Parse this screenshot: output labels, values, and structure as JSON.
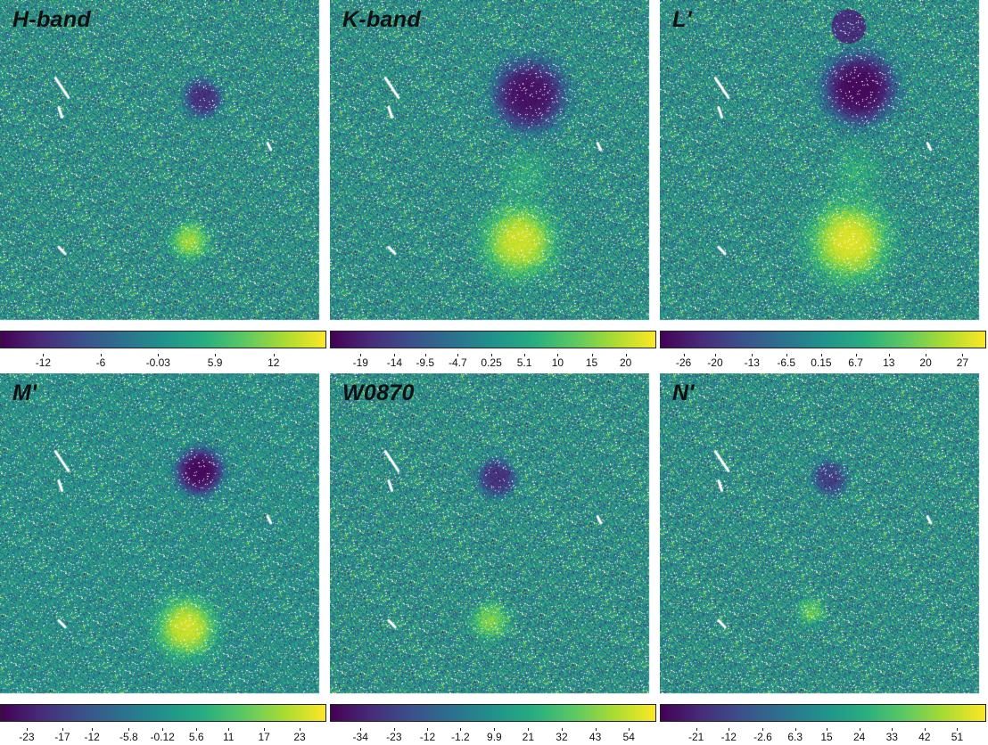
{
  "colormap": "viridis",
  "colormap_stops": [
    "#440154",
    "#472c7a",
    "#3b518b",
    "#2c718e",
    "#21918c",
    "#27ad81",
    "#5cc863",
    "#aadc32",
    "#fde725"
  ],
  "panels": [
    {
      "title": "H-band",
      "ticks": [
        "-12",
        "-6",
        "-0.03",
        "5.9",
        "12"
      ],
      "tick_values": [
        -12,
        -6,
        -0.03,
        5.9,
        12
      ],
      "vmin": -16.5,
      "vmax": 17.5
    },
    {
      "title": "K-band",
      "ticks": [
        "-19",
        "-14",
        "-9.5",
        "-4.7",
        "0.25",
        "5.1",
        "10",
        "15",
        "20"
      ],
      "tick_values": [
        -19,
        -14,
        -9.5,
        -4.7,
        0.25,
        5.1,
        10,
        15,
        20
      ],
      "vmin": -23.5,
      "vmax": 24.5
    },
    {
      "title": "L'",
      "ticks": [
        "-26",
        "-20",
        "-13",
        "-6.5",
        "0.15",
        "6.7",
        "13",
        "20",
        "27"
      ],
      "tick_values": [
        -26,
        -20,
        -13,
        -6.5,
        0.15,
        6.7,
        13,
        20,
        27
      ],
      "vmin": -30.5,
      "vmax": 31.5
    },
    {
      "title": "M'",
      "ticks": [
        "-23",
        "-17",
        "-12",
        "-5.8",
        "-0.12",
        "5.6",
        "11",
        "17",
        "23"
      ],
      "tick_values": [
        -23,
        -17,
        -12,
        -5.8,
        -0.12,
        5.6,
        11,
        17,
        23
      ],
      "vmin": -27.5,
      "vmax": 27.5
    },
    {
      "title": "W0870",
      "ticks": [
        "-34",
        "-23",
        "-12",
        "-1.2",
        "9.9",
        "21",
        "32",
        "43",
        "54"
      ],
      "tick_values": [
        -34,
        -23,
        -12,
        -1.2,
        9.9,
        21,
        32,
        43,
        54
      ],
      "vmin": -44,
      "vmax": 63
    },
    {
      "title": "N'",
      "ticks": [
        "-21",
        "-12",
        "-2.6",
        "6.3",
        "15",
        "24",
        "33",
        "42",
        "51"
      ],
      "tick_values": [
        -21,
        -12,
        -2.6,
        6.3,
        15,
        24,
        33,
        42,
        51
      ],
      "vmin": -31,
      "vmax": 59
    }
  ]
}
